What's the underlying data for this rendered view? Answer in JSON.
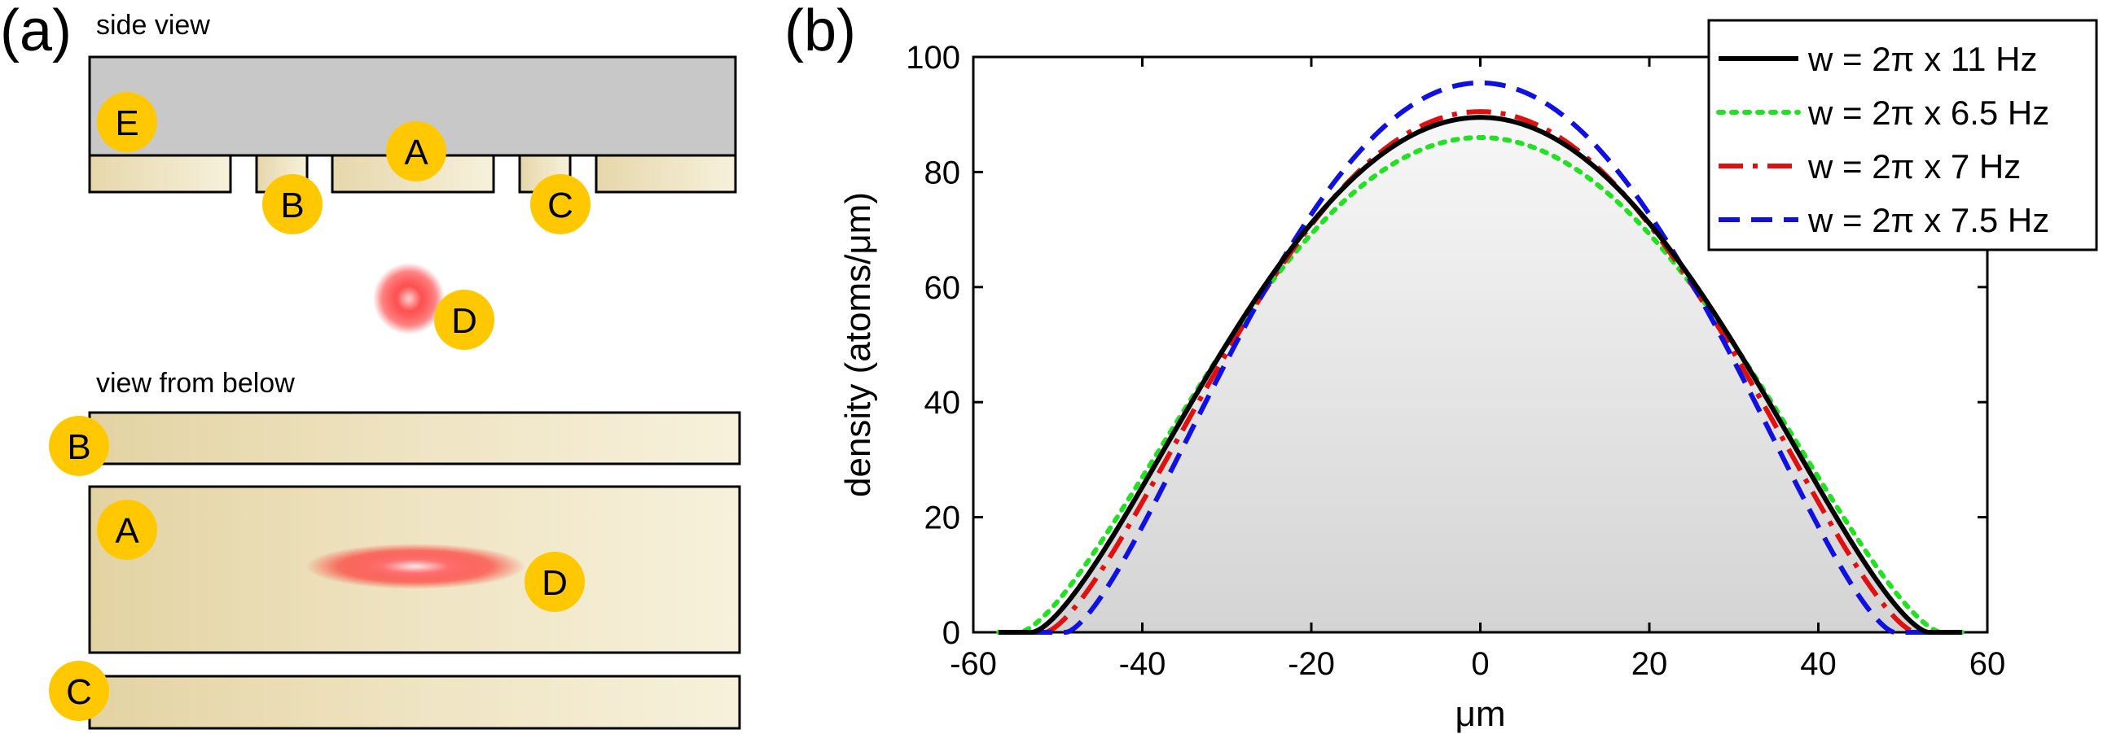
{
  "panel_a": {
    "label": "(a)",
    "side_view_label": "side view",
    "below_view_label": "view from below",
    "badges": {
      "A": "A",
      "B": "B",
      "C": "C",
      "D": "D",
      "E": "E"
    }
  },
  "panel_b": {
    "label": "(b)"
  },
  "colors": {
    "black_series": "#000000",
    "green_series": "#22e022",
    "red_series": "#e01010",
    "blue_series": "#1010e0",
    "badge_fill": "#ffc800",
    "chip_gray": "#c8c8c8",
    "electrode_dark": "#e3d3a3",
    "electrode_light": "#f6f0da",
    "atom_red": "#ff2020"
  },
  "chart_data": {
    "type": "line",
    "xlabel": "μm",
    "ylabel": "density (atoms/μm)",
    "xlim": [
      -60,
      60
    ],
    "ylim": [
      0,
      100
    ],
    "xticks": [
      -60,
      -40,
      -20,
      0,
      20,
      40,
      60
    ],
    "yticks": [
      0,
      20,
      40,
      60,
      80,
      100
    ],
    "grid": false,
    "legend_position": "top-right",
    "series": [
      {
        "name": "w = 2π x 11 Hz",
        "style": "solid",
        "color": "#000000",
        "peak": 89.5,
        "half_width": 53,
        "x_range": [
          -57,
          57
        ]
      },
      {
        "name": "w = 2π x 6.5 Hz",
        "style": "dotted",
        "color": "#22e022",
        "peak": 86,
        "half_width": 54.5,
        "x_range": [
          -57,
          57
        ]
      },
      {
        "name": "w = 2π x 7 Hz",
        "style": "dash-dot",
        "color": "#e01010",
        "peak": 90.5,
        "half_width": 51.5,
        "x_range": [
          -57,
          57
        ]
      },
      {
        "name": "w = 2π x 7.5 Hz",
        "style": "dashed",
        "color": "#1010e0",
        "peak": 95.5,
        "half_width": 49,
        "x_range": [
          -57,
          57
        ]
      }
    ],
    "shaded_area": {
      "under_series": 0
    }
  }
}
